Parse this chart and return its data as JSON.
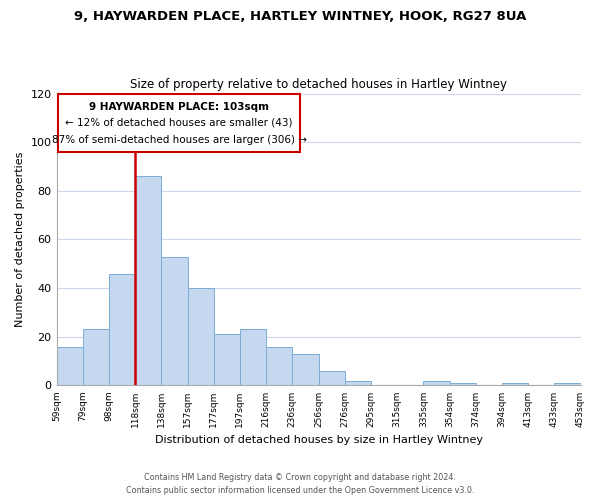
{
  "title1": "9, HAYWARDEN PLACE, HARTLEY WINTNEY, HOOK, RG27 8UA",
  "title2": "Size of property relative to detached houses in Hartley Wintney",
  "xlabel": "Distribution of detached houses by size in Hartley Wintney",
  "ylabel": "Number of detached properties",
  "bin_labels": [
    "59sqm",
    "79sqm",
    "98sqm",
    "118sqm",
    "138sqm",
    "157sqm",
    "177sqm",
    "197sqm",
    "216sqm",
    "236sqm",
    "256sqm",
    "276sqm",
    "295sqm",
    "315sqm",
    "335sqm",
    "354sqm",
    "374sqm",
    "394sqm",
    "413sqm",
    "433sqm",
    "453sqm"
  ],
  "bar_values": [
    16,
    23,
    46,
    86,
    53,
    40,
    21,
    23,
    16,
    13,
    6,
    2,
    0,
    0,
    2,
    1,
    0,
    1,
    0,
    1
  ],
  "bar_color": "#c5d8ef",
  "bar_edge_color": "#7aadd4",
  "property_line_color": "#cc0000",
  "ylim": [
    0,
    120
  ],
  "yticks": [
    0,
    20,
    40,
    60,
    80,
    100,
    120
  ],
  "annotation_title": "9 HAYWARDEN PLACE: 103sqm",
  "annotation_line1": "← 12% of detached houses are smaller (43)",
  "annotation_line2": "87% of semi-detached houses are larger (306) →",
  "annotation_box_color": "#ffffff",
  "annotation_box_edge": "#cc0000",
  "footer1": "Contains HM Land Registry data © Crown copyright and database right 2024.",
  "footer2": "Contains public sector information licensed under the Open Government Licence v3.0.",
  "bg_color": "#ffffff",
  "grid_color": "#ccd8ec"
}
